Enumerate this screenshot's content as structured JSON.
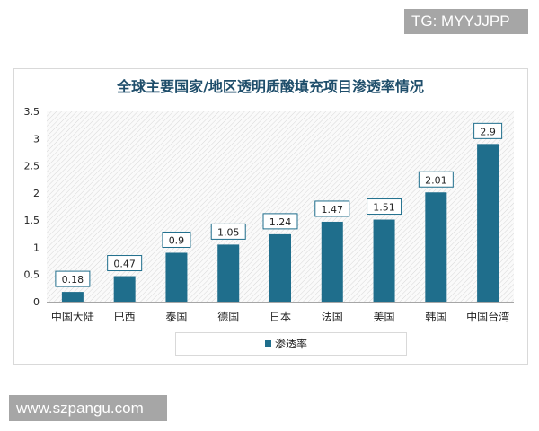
{
  "watermarks": {
    "top": "TG: MYYJJPP",
    "bottom": "www.szpangu.com"
  },
  "colors": {
    "bar": "#1f6e8c",
    "title": "#1f4e6b"
  },
  "chart_data": {
    "type": "bar",
    "title": "全球主要国家/地区透明质酸填充项目渗透率情况",
    "categories": [
      "中国大陆",
      "巴西",
      "泰国",
      "德国",
      "日本",
      "法国",
      "美国",
      "韩国",
      "中国台湾"
    ],
    "series": [
      {
        "name": "渗透率",
        "values": [
          0.18,
          0.47,
          0.9,
          1.05,
          1.24,
          1.47,
          1.51,
          2.01,
          2.9
        ]
      }
    ],
    "data_labels": [
      "0.18",
      "0.47",
      "0.9",
      "1.05",
      "1.24",
      "1.47",
      "1.51",
      "2.01",
      "2.9"
    ],
    "ylim": [
      0,
      3.5
    ],
    "yticks": [
      "0",
      "0.5",
      "1",
      "1.5",
      "2",
      "2.5",
      "3",
      "3.5"
    ],
    "grid": false,
    "legend_position": "bottom",
    "xlabel": "",
    "ylabel": ""
  }
}
